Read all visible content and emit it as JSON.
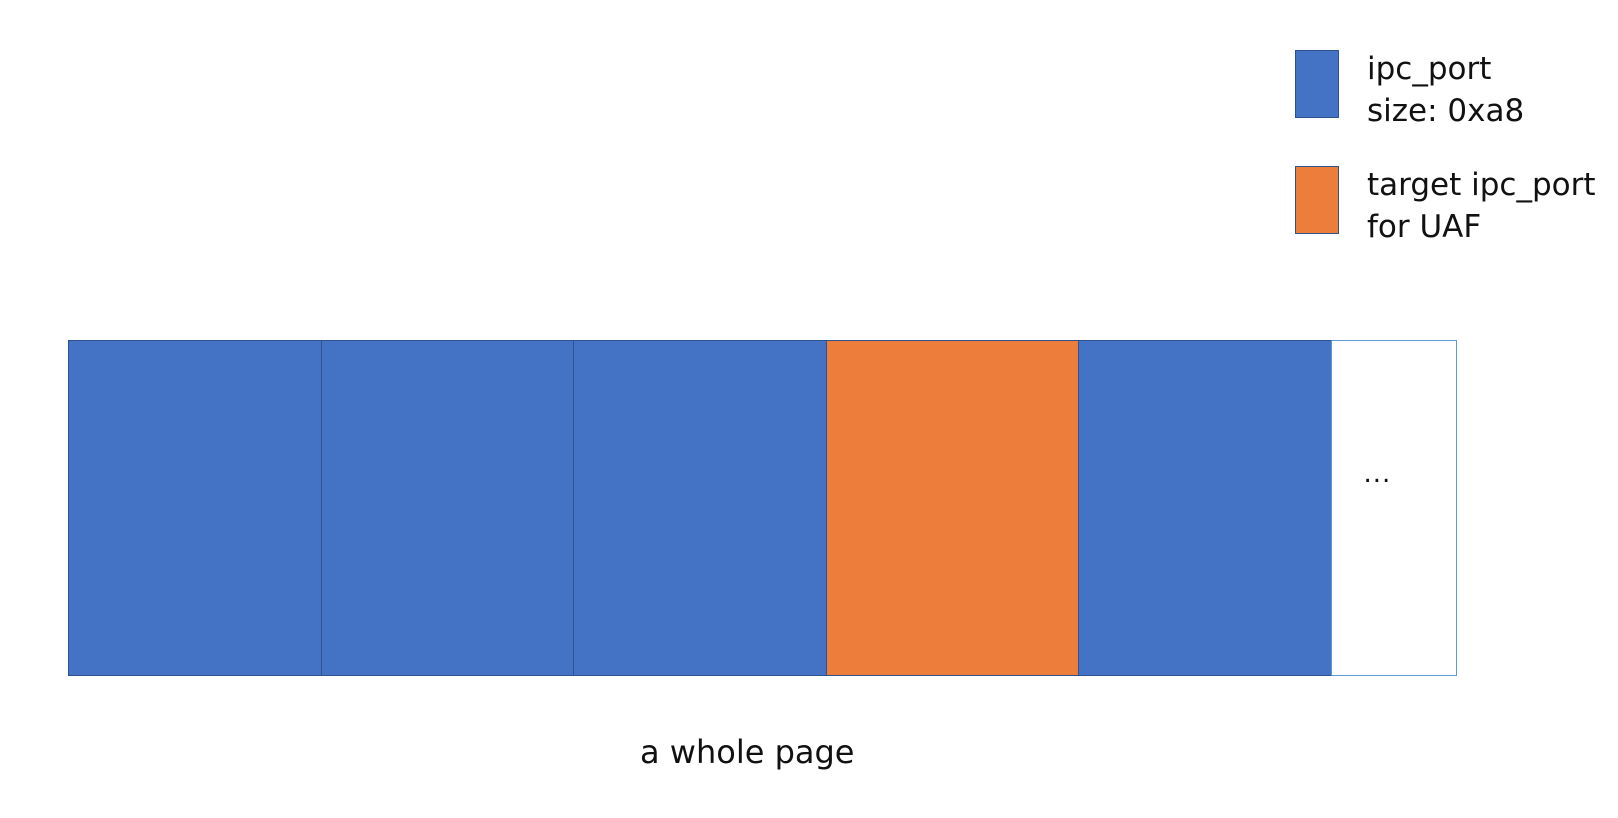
{
  "colors": {
    "ipc_port": "#4472c4",
    "target": "#ed7d3b",
    "outline": "#2f528f",
    "continuation_outline": "#5b9bd5"
  },
  "legend": [
    {
      "kind": "ipc_port",
      "line1": "ipc_port",
      "line2": "size: 0xa8"
    },
    {
      "kind": "target",
      "line1": "target ipc_port",
      "line2": "for UAF"
    }
  ],
  "page": {
    "slots": [
      "ipc_port",
      "ipc_port",
      "ipc_port",
      "target",
      "ipc_port"
    ],
    "continuation": "...",
    "caption": "a whole page"
  }
}
